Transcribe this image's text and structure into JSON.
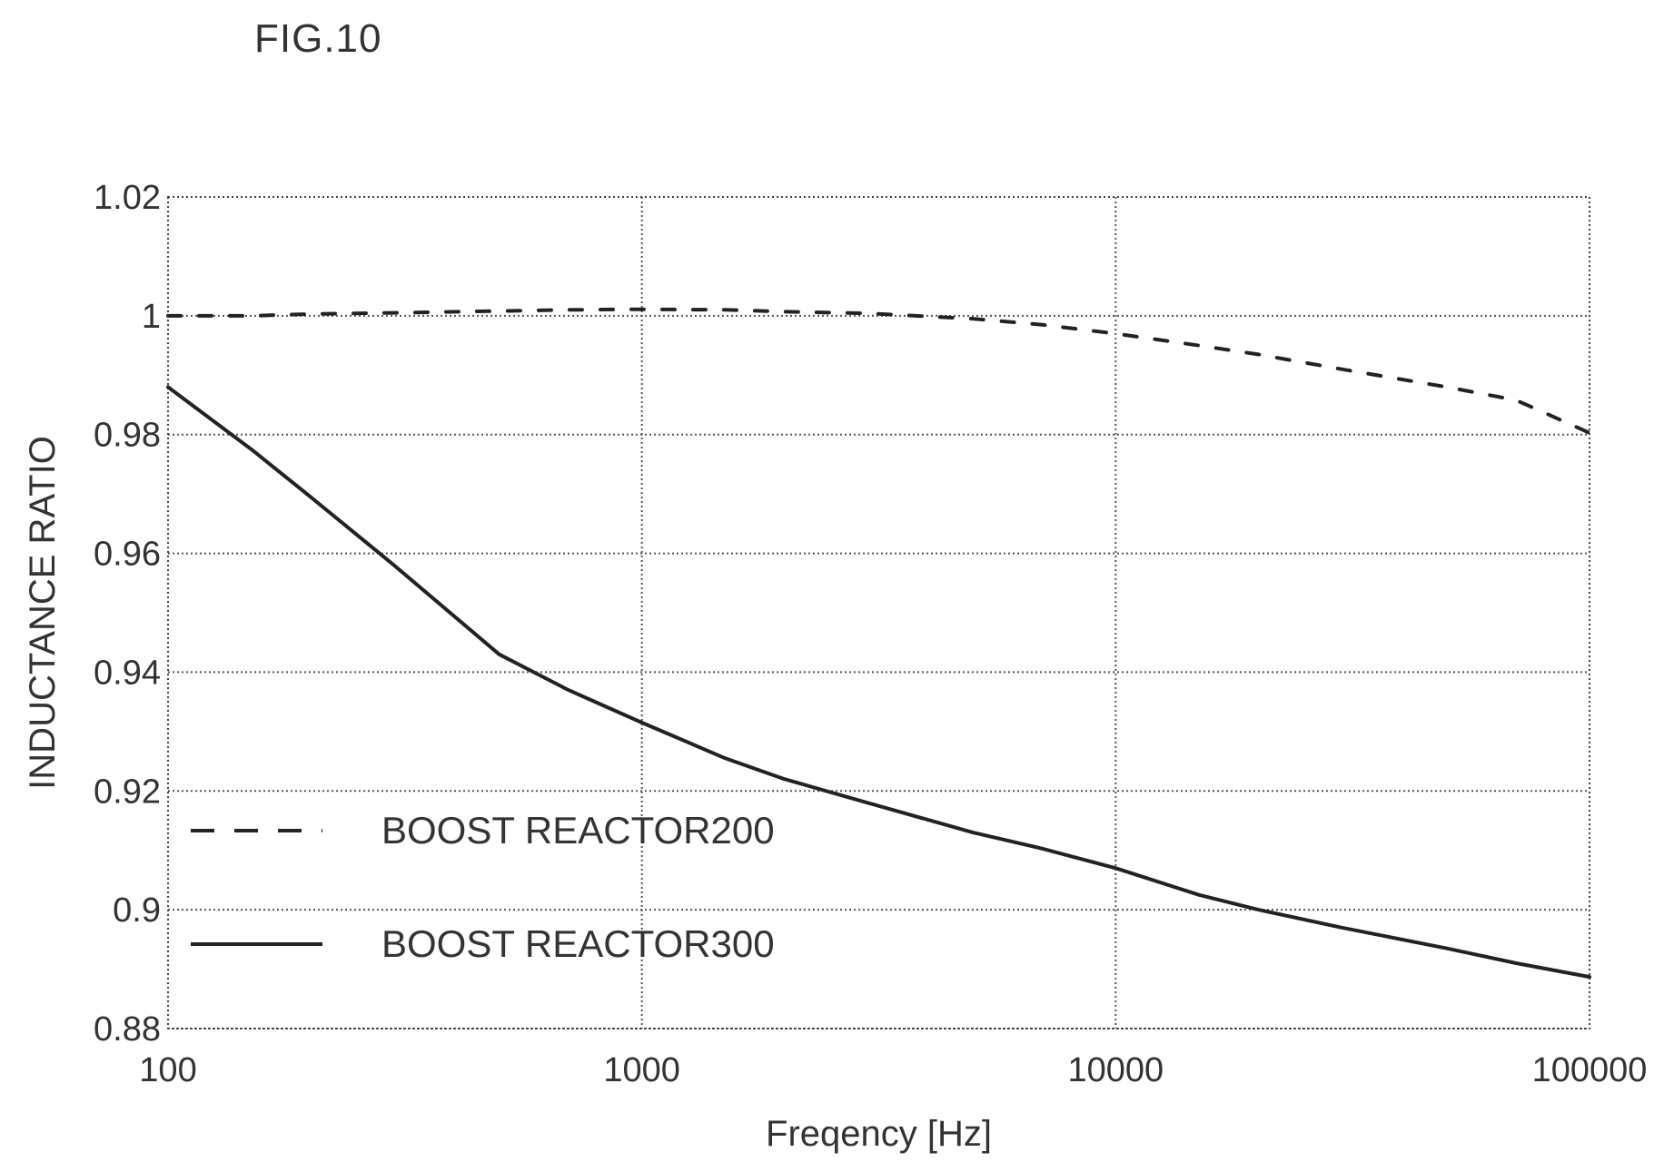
{
  "figure_label": "FIG.10",
  "chart_data": {
    "type": "line",
    "xscale": "log",
    "xlim": [
      100,
      100000
    ],
    "ylim": [
      0.88,
      1.02
    ],
    "xticks": [
      100,
      1000,
      10000,
      100000
    ],
    "xtick_labels": [
      "100",
      "1000",
      "10000",
      "100000"
    ],
    "yticks": [
      0.88,
      0.9,
      0.92,
      0.94,
      0.96,
      0.98,
      1,
      1.02
    ],
    "ytick_labels": [
      "0.88",
      "0.9",
      "0.92",
      "0.94",
      "0.96",
      "0.98",
      "1",
      "1.02"
    ],
    "xlabel": "Freqency [Hz]",
    "ylabel": "INDUCTANCE RATIO",
    "grid": true,
    "legend_position": "bottom-left",
    "series": [
      {
        "name": "BOOST REACTOR200",
        "style": "dashed",
        "color": "#222222",
        "x": [
          100,
          150,
          200,
          300,
          500,
          700,
          1000,
          1500,
          2000,
          3000,
          5000,
          7000,
          10000,
          15000,
          20000,
          30000,
          50000,
          70000,
          100000
        ],
        "y": [
          1.0,
          1.0,
          1.0003,
          1.0005,
          1.0008,
          1.001,
          1.0011,
          1.001,
          1.0007,
          1.0004,
          0.9995,
          0.9985,
          0.997,
          0.995,
          0.9935,
          0.991,
          0.988,
          0.9858,
          0.9803
        ]
      },
      {
        "name": "BOOST REACTOR300",
        "style": "solid",
        "color": "#222222",
        "x": [
          100,
          150,
          200,
          300,
          500,
          700,
          1000,
          1500,
          2000,
          3000,
          5000,
          7000,
          10000,
          15000,
          20000,
          30000,
          50000,
          70000,
          100000
        ],
        "y": [
          0.988,
          0.9775,
          0.9695,
          0.958,
          0.943,
          0.937,
          0.9315,
          0.9255,
          0.922,
          0.918,
          0.913,
          0.9103,
          0.907,
          0.9025,
          0.9,
          0.897,
          0.8935,
          0.891,
          0.8887
        ]
      }
    ]
  }
}
